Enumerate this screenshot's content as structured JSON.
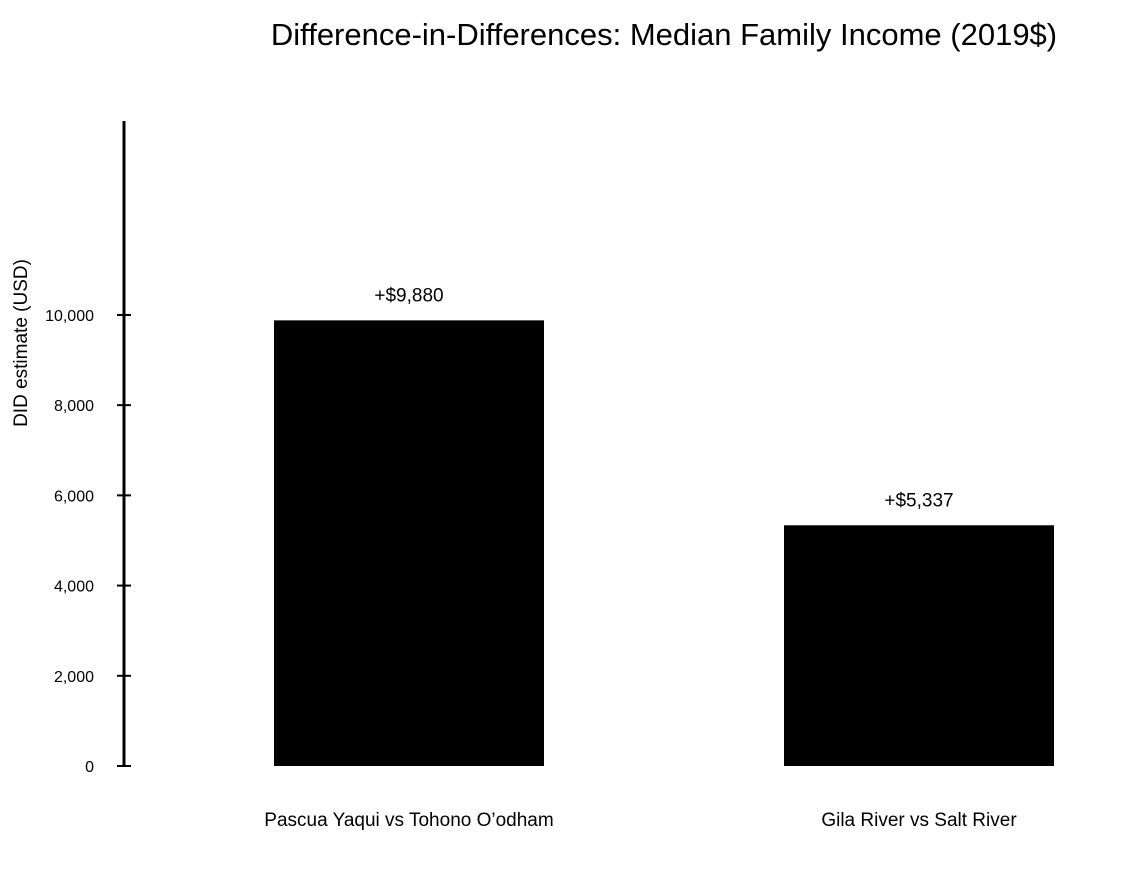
{
  "chart_data": {
    "type": "bar",
    "title": "Difference-in-Differences: Median Family Income (2019$)",
    "xlabel": "",
    "ylabel": "DID estimate (USD)",
    "categories": [
      "Pascua Yaqui vs Tohono O’odham",
      "Gila River vs Salt River"
    ],
    "values": [
      9880,
      5337
    ],
    "data_labels": [
      "+$9,880",
      "+$5,337"
    ],
    "yticks": [
      0,
      2000,
      4000,
      6000,
      8000,
      10000
    ],
    "ytick_labels": [
      "0",
      "2,000",
      "4,000",
      "6,000",
      "8,000",
      "10,000"
    ],
    "ylim": [
      0,
      14300
    ],
    "bar_color": "#000000",
    "grid": false,
    "legend": "none"
  }
}
